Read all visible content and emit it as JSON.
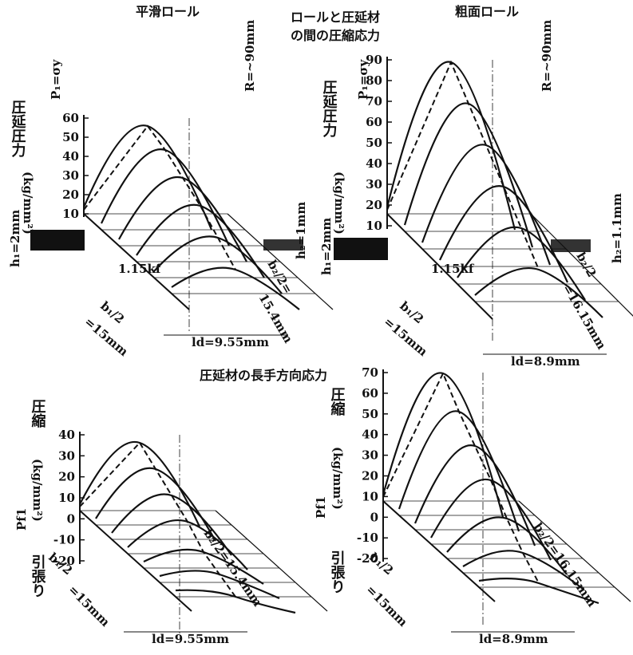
{
  "header": {
    "left_title": "平滑ロール",
    "center_title": [
      "ロールと圧延材",
      "の間の圧縮応力"
    ],
    "right_title": "粗面ロール",
    "lower_title": "圧延材の長手方向応力"
  },
  "panels": [
    {
      "axis_label": "圧延圧力",
      "unit": "(kg/mm²)",
      "symbol": "P₁=σy",
      "ticks": [
        60,
        50,
        40,
        30,
        20,
        10
      ],
      "radius": "R=~90mm",
      "h1": "h₁=2mm",
      "h2": "h₂=1mm",
      "yield": "1.15kf",
      "b1": [
        "b₁/2",
        "=15mm"
      ],
      "b2": [
        "b₂/2=",
        "15.4mm"
      ],
      "ld": "ld=9.55mm"
    },
    {
      "axis_label": "圧延圧力",
      "unit": "(kg/mm²)",
      "symbol": "P₁=σy",
      "ticks": [
        90,
        80,
        70,
        60,
        50,
        40,
        30,
        20,
        10
      ],
      "radius": "R=~90mm",
      "h1": "h₁=2mm",
      "h2": "h₂=1.1mm",
      "yield": "1.15kf",
      "b1": [
        "b₁/2",
        "=15mm"
      ],
      "b2": [
        "b₂/2",
        "=16.15mm"
      ],
      "ld": "ld=8.9mm"
    },
    {
      "axis_label": "圧縮",
      "unit": "(kg/mm²)",
      "symbol": "Pf1",
      "tension": "引張り",
      "ticks": [
        40,
        30,
        20,
        10,
        0,
        -10,
        -20
      ],
      "b1": [
        "b₁/2",
        "=15mm"
      ],
      "b2": "b₂/2=15.4mm",
      "ld": "ld=9.55mm"
    },
    {
      "axis_label": "圧縮",
      "unit": "(kg/mm²)",
      "symbol": "Pf1",
      "tension": "引張り",
      "ticks": [
        70,
        60,
        50,
        40,
        30,
        20,
        10,
        0,
        -10,
        -20
      ],
      "b1": [
        "b₁/2",
        "=15mm"
      ],
      "b2": "b₂/2=16.15mm",
      "ld": "ld=8.9mm"
    }
  ]
}
